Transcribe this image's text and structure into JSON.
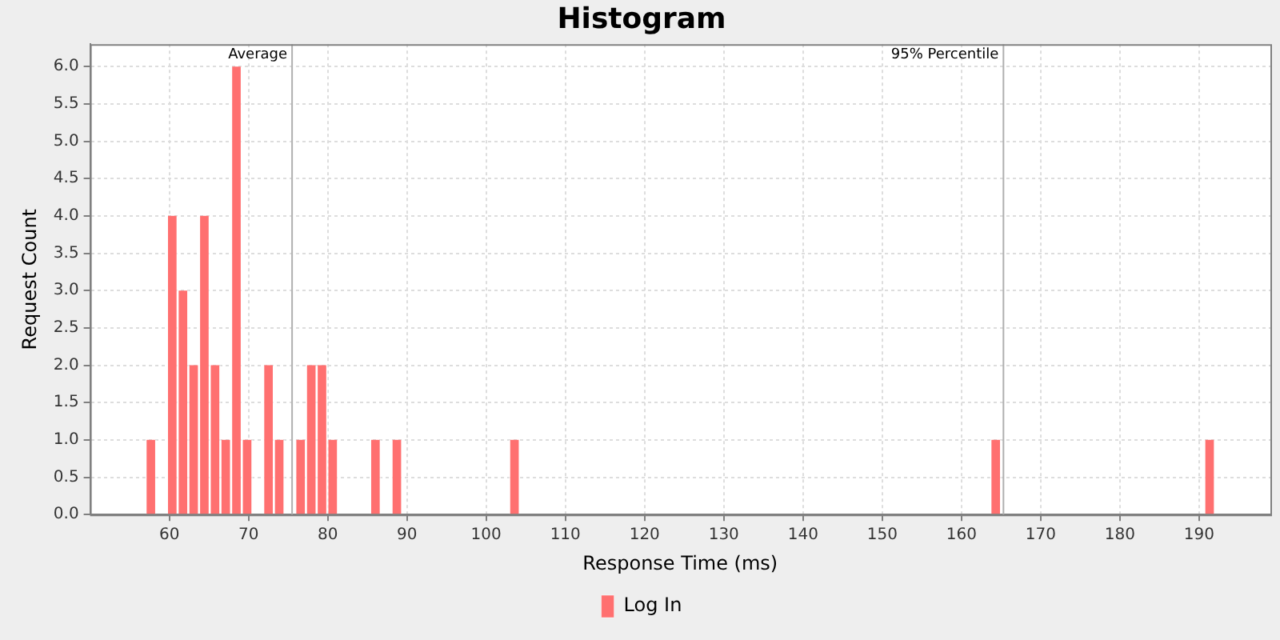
{
  "chart_data": {
    "type": "histogram",
    "title": "Histogram",
    "xlabel": "Response Time (ms)",
    "ylabel": "Request Count",
    "bins": [
      57,
      58.35,
      59.7,
      61.05,
      62.4,
      63.75,
      65.1,
      66.45,
      67.8,
      69.15,
      70.5,
      71.85,
      73.2,
      74.55,
      75.9,
      77.25,
      78.6,
      79.95,
      81.3,
      82.65,
      84,
      85.35,
      86.7,
      88.05,
      89.4,
      90.75,
      92.1,
      93.45,
      94.8,
      96.15,
      97.5,
      98.85,
      100.2,
      101.55,
      102.9,
      104.25,
      105.6,
      106.95,
      108.3,
      109.65,
      111,
      112.35,
      113.7,
      115.05,
      116.4,
      117.75,
      119.1,
      120.45,
      121.8,
      123.15,
      124.5,
      125.85,
      127.2,
      128.55,
      129.9,
      131.25,
      132.6,
      133.95,
      135.3,
      136.65,
      138,
      139.35,
      140.7,
      142.05,
      143.4,
      144.75,
      146.1,
      147.45,
      148.8,
      150.15,
      151.5,
      152.85,
      154.2,
      155.55,
      156.9,
      158.25,
      159.6,
      160.95,
      162.3,
      163.65,
      165,
      166.35,
      167.7,
      169.05,
      170.4,
      171.75,
      173.1,
      174.45,
      175.8,
      177.15,
      178.5,
      179.85,
      181.2,
      182.55,
      183.9,
      185.25,
      186.6,
      187.95,
      189.3,
      190.65,
      192
    ],
    "series": [
      {
        "name": "Log In",
        "color": "#ff7070",
        "values": [
          1,
          0,
          4,
          3,
          2,
          4,
          2,
          1,
          6,
          1,
          0,
          2,
          1,
          0,
          1,
          2,
          2,
          1,
          0,
          0,
          0,
          1,
          0,
          1,
          0,
          0,
          0,
          0,
          0,
          0,
          0,
          0,
          0,
          0,
          1,
          0,
          0,
          0,
          0,
          0,
          0,
          0,
          0,
          0,
          0,
          0,
          0,
          0,
          0,
          0,
          0,
          0,
          0,
          0,
          0,
          0,
          0,
          0,
          0,
          0,
          0,
          0,
          0,
          0,
          0,
          0,
          0,
          0,
          0,
          0,
          0,
          0,
          0,
          0,
          0,
          0,
          0,
          0,
          0,
          1,
          0,
          0,
          0,
          0,
          0,
          0,
          0,
          0,
          0,
          0,
          0,
          0,
          0,
          0,
          0,
          0,
          0,
          0,
          0,
          1
        ]
      }
    ],
    "xlim": [
      50,
      199
    ],
    "xticks": [
      60,
      70,
      80,
      90,
      100,
      110,
      120,
      130,
      140,
      150,
      160,
      170,
      180,
      190
    ],
    "ylim": [
      0,
      6.3
    ],
    "yticks": [
      {
        "value": 0,
        "label": "0.0"
      },
      0.5,
      {
        "value": 1,
        "label": "1.0"
      },
      1.5,
      {
        "value": 2,
        "label": "2.0"
      },
      2.5,
      {
        "value": 3,
        "label": "3.0"
      },
      3.5,
      {
        "value": 4,
        "label": "4.0"
      },
      4.5,
      {
        "value": 5,
        "label": "5.0"
      },
      5.5,
      {
        "value": 6,
        "label": "6.0"
      }
    ],
    "ref_lines": [
      {
        "axis": "x",
        "value": 75.5,
        "label": "Average",
        "color": "#b0b0b0"
      },
      {
        "axis": "x",
        "value": 165.3,
        "label": "95% Percentile",
        "color": "#b0b0b0"
      }
    ],
    "grid": true,
    "legend": "bottom"
  }
}
